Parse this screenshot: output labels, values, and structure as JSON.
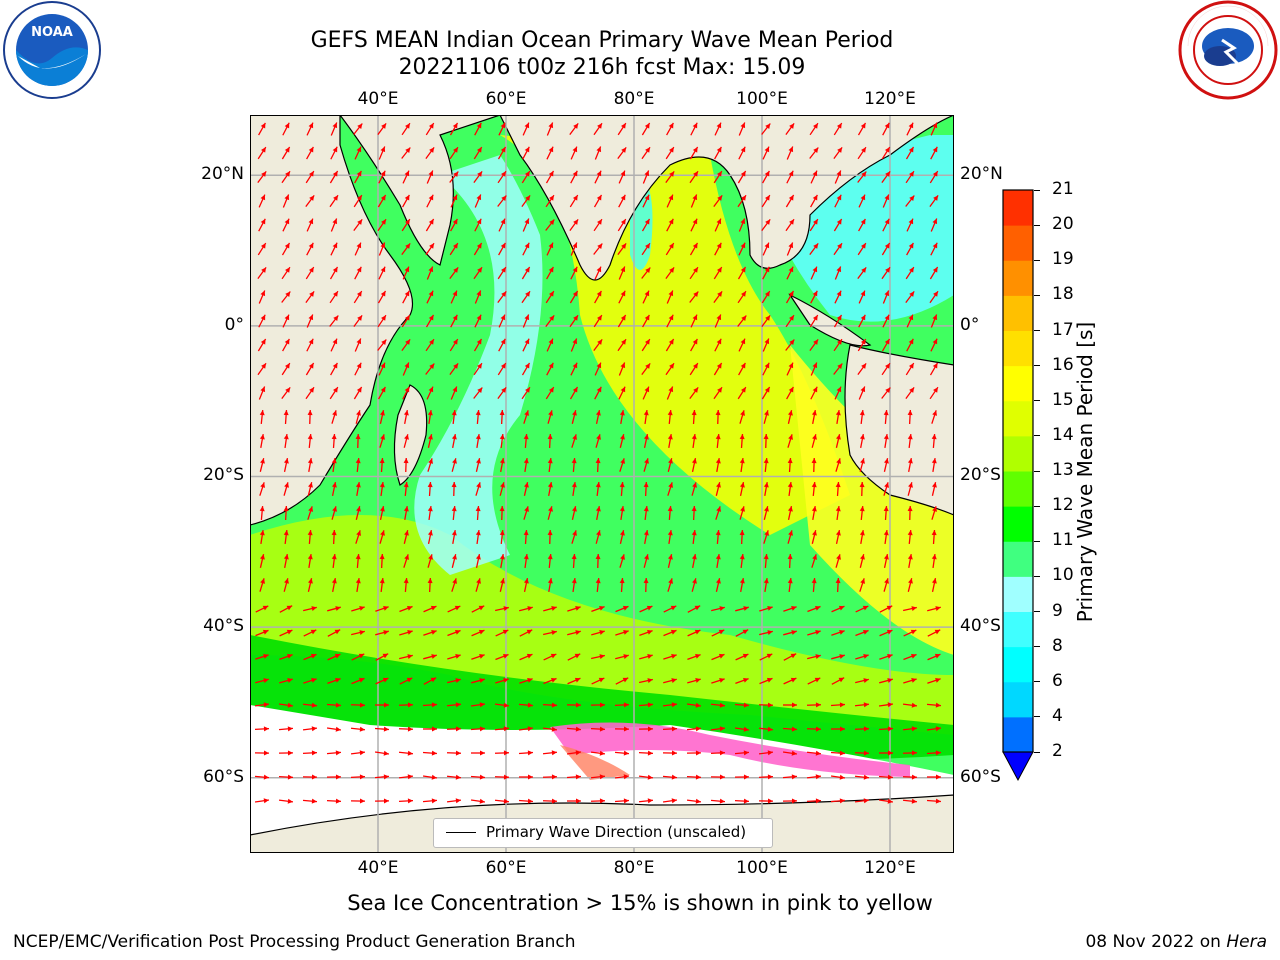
{
  "title_line1": "GEFS MEAN Indian Ocean Primary Wave Mean Period",
  "title_line2": "20221106 t00z 216h fcst   Max: 15.09",
  "logos": {
    "left": {
      "name": "NOAA",
      "ring_text": "NATIONAL OCEANIC AND ATMOSPHERIC ADMINISTRATION · U.S. DEPARTMENT OF COMMERCE"
    },
    "right": {
      "name": "NATIONAL WEATHER SERVICE"
    }
  },
  "map": {
    "lon_range": [
      20,
      130
    ],
    "lat_range": [
      -70,
      28
    ],
    "lon_ticks": [
      {
        "value": 40,
        "label": "40°E"
      },
      {
        "value": 60,
        "label": "60°E"
      },
      {
        "value": 80,
        "label": "80°E"
      },
      {
        "value": 100,
        "label": "100°E"
      },
      {
        "value": 120,
        "label": "120°E"
      }
    ],
    "lat_ticks": [
      {
        "value": 20,
        "label": "20°N"
      },
      {
        "value": 0,
        "label": "0°"
      },
      {
        "value": -20,
        "label": "20°S"
      },
      {
        "value": -40,
        "label": "40°S"
      },
      {
        "value": -60,
        "label": "60°S"
      }
    ],
    "legend_label": "Primary Wave Direction (unscaled)",
    "arrow_color": "#ff0000",
    "land_color": "#efecdc",
    "ice_color": "#ffffff"
  },
  "colorbar": {
    "label": "Primary Wave Mean Period [s]",
    "ticks": [
      "2",
      "4",
      "6",
      "8",
      "9",
      "10",
      "11",
      "12",
      "13",
      "14",
      "15",
      "16",
      "17",
      "18",
      "19",
      "20",
      "21"
    ],
    "colors": [
      "#0070ff",
      "#00d8ff",
      "#00ffff",
      "#40ffff",
      "#a0ffff",
      "#40ff80",
      "#00ff00",
      "#60ff00",
      "#b0ff00",
      "#e0ff00",
      "#ffff00",
      "#ffe000",
      "#ffc000",
      "#ff9000",
      "#ff6000",
      "#ff3000"
    ],
    "extend_low_color": "#0000ff"
  },
  "caption": "Sea Ice Concentration > 15% is shown in pink to yellow",
  "footer_left": "NCEP/EMC/Verification Post Processing Product Generation Branch",
  "footer_right_date": "08 Nov 2022 on ",
  "footer_right_host": "Hera"
}
